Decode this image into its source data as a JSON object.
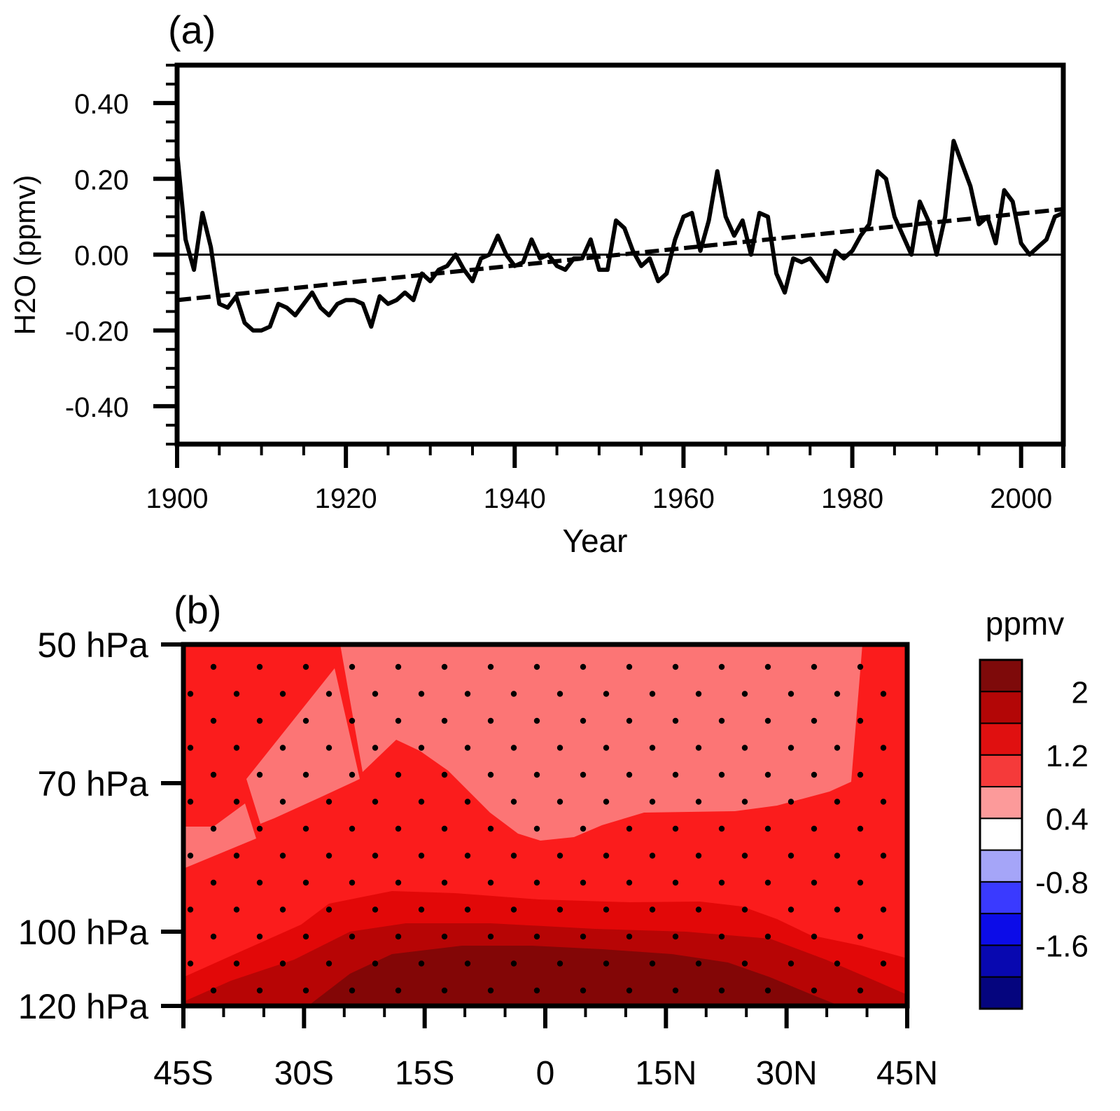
{
  "chart_data": [
    {
      "type": "line",
      "panel_label": "(a)",
      "xlabel": "Year",
      "ylabel": "H2O (ppmv)",
      "xlim": [
        1900,
        2005
      ],
      "ylim": [
        -0.5,
        0.5
      ],
      "xticks": [
        1900,
        1920,
        1940,
        1960,
        1980,
        2000
      ],
      "xtick_labels": [
        "1900",
        "1920",
        "1940",
        "1960",
        "1980",
        "2000"
      ],
      "yticks": [
        0.4,
        0.2,
        0.0,
        -0.2,
        -0.4
      ],
      "ytick_labels": [
        "0.40",
        "0.20",
        "0.00",
        "-0.20",
        "-0.40"
      ],
      "zero_line": 0,
      "series": [
        {
          "style": "solid",
          "x": [
            1900,
            1901,
            1902,
            1903,
            1904,
            1905,
            1906,
            1907,
            1908,
            1909,
            1910,
            1911,
            1912,
            1913,
            1914,
            1915,
            1916,
            1917,
            1918,
            1919,
            1920,
            1921,
            1922,
            1923,
            1924,
            1925,
            1926,
            1927,
            1928,
            1929,
            1930,
            1931,
            1932,
            1933,
            1934,
            1935,
            1936,
            1937,
            1938,
            1939,
            1940,
            1941,
            1942,
            1943,
            1944,
            1945,
            1946,
            1947,
            1948,
            1949,
            1950,
            1951,
            1952,
            1953,
            1954,
            1955,
            1956,
            1957,
            1958,
            1959,
            1960,
            1961,
            1962,
            1963,
            1964,
            1965,
            1966,
            1967,
            1968,
            1969,
            1970,
            1971,
            1972,
            1973,
            1974,
            1975,
            1976,
            1977,
            1978,
            1979,
            1980,
            1981,
            1982,
            1983,
            1984,
            1985,
            1986,
            1987,
            1988,
            1989,
            1990,
            1991,
            1992,
            1993,
            1994,
            1995,
            1996,
            1997,
            1998,
            1999,
            2000,
            2001,
            2002,
            2003,
            2004,
            2005
          ],
          "y": [
            0.27,
            0.04,
            -0.04,
            0.11,
            0.02,
            -0.13,
            -0.14,
            -0.11,
            -0.18,
            -0.2,
            -0.2,
            -0.19,
            -0.13,
            -0.14,
            -0.16,
            -0.13,
            -0.1,
            -0.14,
            -0.16,
            -0.13,
            -0.12,
            -0.12,
            -0.13,
            -0.19,
            -0.11,
            -0.13,
            -0.12,
            -0.1,
            -0.12,
            -0.05,
            -0.07,
            -0.04,
            -0.03,
            0.0,
            -0.04,
            -0.07,
            -0.01,
            0.0,
            0.05,
            0.0,
            -0.03,
            -0.02,
            0.04,
            -0.01,
            0.0,
            -0.03,
            -0.04,
            -0.01,
            -0.01,
            0.04,
            -0.04,
            -0.04,
            0.09,
            0.07,
            0.01,
            -0.03,
            -0.01,
            -0.07,
            -0.05,
            0.04,
            0.1,
            0.11,
            0.01,
            0.09,
            0.22,
            0.1,
            0.05,
            0.09,
            0.0,
            0.11,
            0.1,
            -0.05,
            -0.1,
            -0.01,
            -0.02,
            -0.01,
            -0.04,
            -0.07,
            0.01,
            -0.01,
            0.01,
            0.05,
            0.08,
            0.22,
            0.2,
            0.1,
            0.05,
            0.0,
            0.14,
            0.09,
            0.0,
            0.1,
            0.3,
            0.24,
            0.18,
            0.08,
            0.1,
            0.03,
            0.17,
            0.14,
            0.03,
            0.0,
            0.02,
            0.04,
            0.1,
            0.11
          ]
        },
        {
          "style": "dashed",
          "x": [
            1900,
            2005
          ],
          "y": [
            -0.12,
            0.12
          ]
        }
      ]
    },
    {
      "type": "heatmap",
      "panel_label": "(b)",
      "x_ticks": [
        "45S",
        "30S",
        "15S",
        "0",
        "15N",
        "30N",
        "45N"
      ],
      "x_values": [
        -45,
        -30,
        -15,
        0,
        15,
        30,
        45
      ],
      "y_ticks": [
        "50 hPa",
        "70 hPa",
        "100 hPa",
        "120 hPa"
      ],
      "y_values": [
        50,
        70,
        100,
        120
      ],
      "colorbar": {
        "title": "ppmv",
        "labels": [
          "2",
          "1.2",
          "0.4",
          "-0.8",
          "-1.6"
        ],
        "colors": [
          "#7e0a0a",
          "#b30606",
          "#e01010",
          "#f53a3a",
          "#fc9a9a",
          "#ffffff",
          "#a5a5f8",
          "#3a3aff",
          "#0c0ce8",
          "#0808b0",
          "#05057e"
        ]
      },
      "fill_colors": {
        "light": "#fc7575",
        "mid": "#fb1c1c",
        "dark1": "#e20808",
        "dark2": "#b70505",
        "dark3": "#830606"
      },
      "stippled": true
    }
  ]
}
